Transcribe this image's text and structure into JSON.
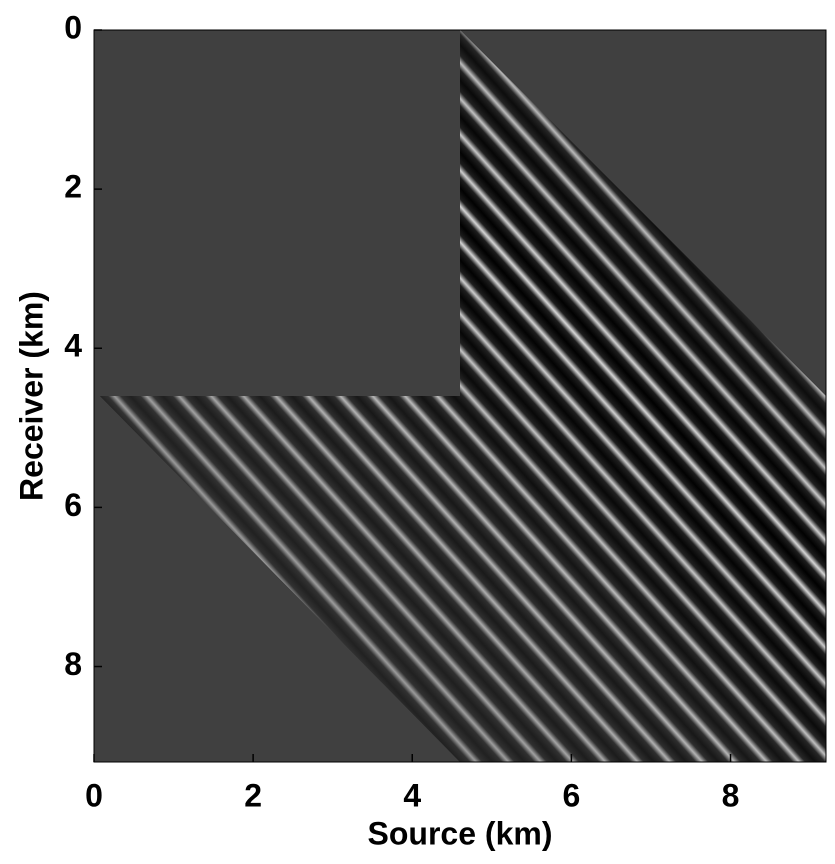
{
  "chart_data": {
    "type": "image",
    "xlabel": "Source (km)",
    "ylabel": "Receiver (km)",
    "xlim": [
      0,
      9.2
    ],
    "ylim": [
      9.2,
      0
    ],
    "xticks": [
      0,
      2,
      4,
      6,
      8
    ],
    "yticks": [
      0,
      2,
      4,
      6,
      8
    ]
  }
}
